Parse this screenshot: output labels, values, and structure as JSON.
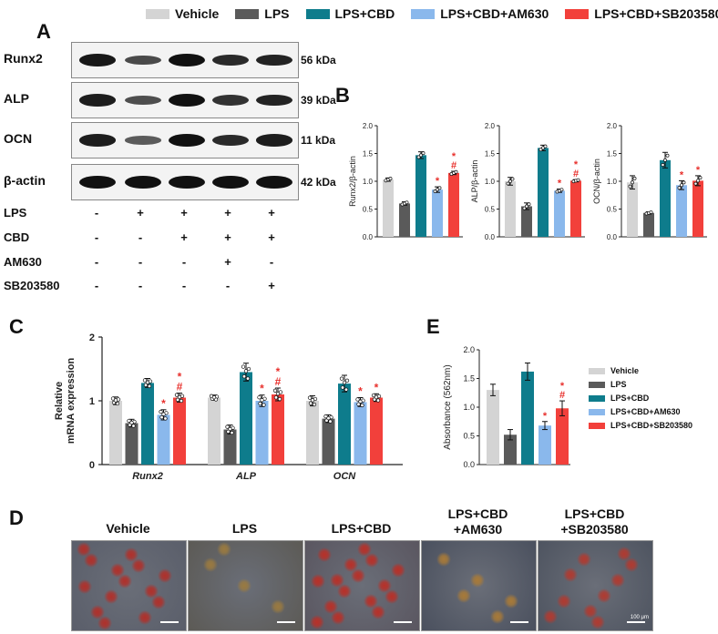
{
  "legend_top": {
    "items": [
      {
        "label": "Vehicle",
        "color": "#d4d4d4"
      },
      {
        "label": "LPS",
        "color": "#5a5a5a"
      },
      {
        "label": "LPS+CBD",
        "color": "#0e7c8c"
      },
      {
        "label": "LPS+CBD+AM630",
        "color": "#8ab8ec"
      },
      {
        "label": "LPS+CBD+SB203580",
        "color": "#f2403b"
      }
    ]
  },
  "panel_a": {
    "letter": "A",
    "blots": [
      {
        "label": "Runx2",
        "kda": "56 kDa",
        "intensity": [
          0.95,
          0.55,
          1.0,
          0.8,
          0.85
        ]
      },
      {
        "label": "ALP",
        "kda": "39 kDa",
        "intensity": [
          0.9,
          0.5,
          1.0,
          0.75,
          0.85
        ]
      },
      {
        "label": "OCN",
        "kda": "11 kDa",
        "intensity": [
          0.9,
          0.4,
          1.0,
          0.8,
          0.9
        ]
      },
      {
        "label": "β-actin",
        "kda": "42 kDa",
        "intensity": [
          1.0,
          1.0,
          1.0,
          1.0,
          1.0
        ]
      }
    ],
    "treatments": [
      {
        "label": "LPS",
        "signs": [
          "-",
          "+",
          "+",
          "+",
          "+"
        ]
      },
      {
        "label": "CBD",
        "signs": [
          "-",
          "-",
          "+",
          "+",
          "+"
        ]
      },
      {
        "label": "AM630",
        "signs": [
          "-",
          "-",
          "-",
          "+",
          "-"
        ]
      },
      {
        "label": "SB203580",
        "signs": [
          "-",
          "-",
          "-",
          "-",
          "+"
        ]
      }
    ]
  },
  "panel_b_letter": "B",
  "panel_c_letter": "C",
  "panel_d": {
    "letter": "D",
    "labels": [
      [
        "Vehicle"
      ],
      [
        "LPS"
      ],
      [
        "LPS+CBD"
      ],
      [
        "LPS+CBD",
        "+AM630"
      ],
      [
        "LPS+CBD",
        "+SB203580"
      ]
    ],
    "scale_text": "100 μm"
  },
  "panel_e_letter": "E",
  "colors": [
    "#d4d4d4",
    "#5a5a5a",
    "#0e7c8c",
    "#8ab8ec",
    "#f2403b"
  ],
  "chart_data": [
    {
      "type": "bar",
      "panel": "B-Runx2",
      "ylabel": "Runx2/β-actin",
      "ylim": [
        0,
        2.0
      ],
      "yticks": [
        "0.0",
        "0.5",
        "1.0",
        "1.5",
        "2.0"
      ],
      "categories": [
        "Vehicle",
        "LPS",
        "LPS+CBD",
        "LPS+CBD+AM630",
        "LPS+CBD+SB203580"
      ],
      "values": [
        1.03,
        0.6,
        1.47,
        0.85,
        1.15
      ],
      "errors": [
        0.03,
        0.03,
        0.06,
        0.05,
        0.03
      ],
      "annotations": [
        "",
        "",
        "",
        "*",
        "*\n#"
      ]
    },
    {
      "type": "bar",
      "panel": "B-ALP",
      "ylabel": "ALP/β-actin",
      "ylim": [
        0,
        2.0
      ],
      "yticks": [
        "0.0",
        "0.5",
        "1.0",
        "1.5",
        "2.0"
      ],
      "categories": [
        "Vehicle",
        "LPS",
        "LPS+CBD",
        "LPS+CBD+AM630",
        "LPS+CBD+SB203580"
      ],
      "values": [
        1.0,
        0.55,
        1.6,
        0.83,
        1.01
      ],
      "errors": [
        0.07,
        0.06,
        0.05,
        0.03,
        0.02
      ],
      "annotations": [
        "",
        "",
        "",
        "*",
        "*\n#"
      ]
    },
    {
      "type": "bar",
      "panel": "B-OCN",
      "ylabel": "OCN/β-actin",
      "ylim": [
        0,
        2.0
      ],
      "yticks": [
        "0.0",
        "0.5",
        "1.0",
        "1.5",
        "2.0"
      ],
      "categories": [
        "Vehicle",
        "LPS",
        "LPS+CBD",
        "LPS+CBD+AM630",
        "LPS+CBD+SB203580"
      ],
      "values": [
        0.98,
        0.43,
        1.38,
        0.93,
        1.01
      ],
      "errors": [
        0.12,
        0.02,
        0.14,
        0.08,
        0.09
      ],
      "annotations": [
        "",
        "",
        "",
        "*",
        "*"
      ]
    },
    {
      "type": "bar",
      "panel": "C",
      "ylabel": "Relative\nmRNA expression",
      "ylim": [
        0,
        2
      ],
      "yticks": [
        "0",
        "1",
        "2"
      ],
      "categories": [
        "Runx2",
        "ALP",
        "OCN"
      ],
      "series": [
        {
          "name": "Vehicle",
          "values": [
            1.0,
            1.05,
            1.0
          ],
          "errors": [
            0.06,
            0.04,
            0.08
          ]
        },
        {
          "name": "LPS",
          "values": [
            0.65,
            0.55,
            0.72
          ],
          "errors": [
            0.06,
            0.07,
            0.06
          ]
        },
        {
          "name": "LPS+CBD",
          "values": [
            1.28,
            1.45,
            1.27
          ],
          "errors": [
            0.07,
            0.14,
            0.13
          ]
        },
        {
          "name": "LPS+CBD+AM630",
          "values": [
            0.78,
            1.0,
            0.98
          ],
          "errors": [
            0.08,
            0.09,
            0.07
          ]
        },
        {
          "name": "LPS+CBD+SB203580",
          "values": [
            1.05,
            1.1,
            1.05
          ],
          "errors": [
            0.07,
            0.1,
            0.06
          ]
        }
      ],
      "annotations": [
        [
          "",
          "",
          "",
          "*",
          "*\n#"
        ],
        [
          "",
          "",
          "",
          "*",
          "*\n#"
        ],
        [
          "",
          "",
          "",
          "*",
          "*"
        ]
      ]
    },
    {
      "type": "bar",
      "panel": "E",
      "ylabel": "Absorbance (562nm)",
      "ylim": [
        0,
        2.0
      ],
      "yticks": [
        "0.0",
        "0.5",
        "1.0",
        "1.5",
        "2.0"
      ],
      "categories": [
        "Vehicle",
        "LPS",
        "LPS+CBD",
        "LPS+CBD+AM630",
        "LPS+CBD+SB203580"
      ],
      "values": [
        1.3,
        0.52,
        1.62,
        0.68,
        0.98
      ],
      "errors": [
        0.1,
        0.09,
        0.15,
        0.07,
        0.13
      ],
      "annotations": [
        "",
        "",
        "",
        "*",
        "*\n#"
      ],
      "legend": [
        "Vehicle",
        "LPS",
        "LPS+CBD",
        "LPS+CBD+AM630",
        "LPS+CBD+SB203580"
      ]
    }
  ]
}
